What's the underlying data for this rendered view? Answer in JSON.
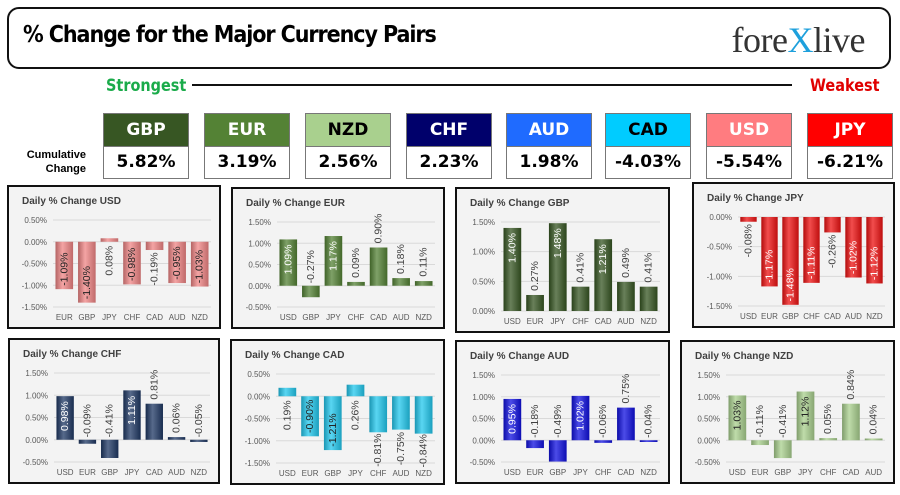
{
  "header": {
    "title": "% Change for the Major Currency Pairs",
    "logo": "forexlive",
    "strongest_label": "Strongest",
    "weakest_label": "Weakest",
    "cumulative_label": "Cumulative Change"
  },
  "summary": [
    {
      "currency": "GBP",
      "value": "5.82%",
      "color": "#375623",
      "text_color": "#ffffff"
    },
    {
      "currency": "EUR",
      "value": "3.19%",
      "color": "#548235",
      "text_color": "#ffffff"
    },
    {
      "currency": "NZD",
      "value": "2.56%",
      "color": "#a9d08e",
      "text_color": "#000000"
    },
    {
      "currency": "CHF",
      "value": "2.23%",
      "color": "#00006b",
      "text_color": "#ffffff"
    },
    {
      "currency": "AUD",
      "value": "1.98%",
      "color": "#1f6bff",
      "text_color": "#ffffff"
    },
    {
      "currency": "CAD",
      "value": "-4.03%",
      "color": "#00ccff",
      "text_color": "#000000"
    },
    {
      "currency": "USD",
      "value": "-5.54%",
      "color": "#ff7c80",
      "text_color": "#ffffff"
    },
    {
      "currency": "JPY",
      "value": "-6.21%",
      "color": "#ff0000",
      "text_color": "#ffffff"
    }
  ],
  "chart_data": [
    {
      "type": "bar",
      "title": "Daily % Change USD",
      "color": "#f08585",
      "categories": [
        "EUR",
        "GBP",
        "JPY",
        "CHF",
        "CAD",
        "AUD",
        "NZD"
      ],
      "values": [
        -1.09,
        -1.4,
        0.08,
        -0.98,
        -0.19,
        -0.95,
        -1.03
      ],
      "ylim": [
        -1.5,
        0.5
      ],
      "yticks": [
        "-1.50%",
        "-1.00%",
        "-0.50%",
        "0.00%",
        "0.50%"
      ],
      "grid": true
    },
    {
      "type": "bar",
      "title": "Daily % Change EUR",
      "color": "#548235",
      "categories": [
        "USD",
        "GBP",
        "JPY",
        "CHF",
        "CAD",
        "AUD",
        "NZD"
      ],
      "values": [
        1.09,
        -0.27,
        1.17,
        0.09,
        0.9,
        0.18,
        0.11
      ],
      "ylim": [
        -0.5,
        1.5
      ],
      "yticks": [
        "-0.50%",
        "0.00%",
        "0.50%",
        "1.00%",
        "1.50%"
      ],
      "grid": true
    },
    {
      "type": "bar",
      "title": "Daily % Change GBP",
      "color": "#375623",
      "categories": [
        "USD",
        "EUR",
        "JPY",
        "CHF",
        "CAD",
        "AUD",
        "NZD"
      ],
      "values": [
        1.4,
        0.27,
        1.48,
        0.41,
        1.21,
        0.49,
        0.41
      ],
      "ylim": [
        0,
        1.5
      ],
      "yticks": [
        "0.00%",
        "0.50%",
        "1.00%",
        "1.50%"
      ],
      "grid": true
    },
    {
      "type": "bar",
      "title": "Daily % Change JPY",
      "color": "#ee1111",
      "categories": [
        "USD",
        "EUR",
        "GBP",
        "CHF",
        "CAD",
        "AUD",
        "NZD"
      ],
      "values": [
        -0.08,
        -1.17,
        -1.48,
        -1.11,
        -0.26,
        -1.02,
        -1.12
      ],
      "ylim": [
        -1.5,
        0
      ],
      "yticks": [
        "-1.50%",
        "-1.00%",
        "-0.50%",
        "0.00%"
      ],
      "grid": true
    },
    {
      "type": "bar",
      "title": "Daily % Change CHF",
      "color": "#1f3864",
      "categories": [
        "USD",
        "EUR",
        "GBP",
        "JPY",
        "CAD",
        "AUD",
        "NZD"
      ],
      "values": [
        0.98,
        -0.09,
        -0.41,
        1.11,
        0.81,
        0.06,
        -0.05
      ],
      "ylim": [
        -0.5,
        1.5
      ],
      "yticks": [
        "-0.50%",
        "0.00%",
        "0.50%",
        "1.00%",
        "1.50%"
      ],
      "grid": true
    },
    {
      "type": "bar",
      "title": "Daily % Change CAD",
      "color": "#22c8ee",
      "categories": [
        "USD",
        "EUR",
        "GBP",
        "JPY",
        "CHF",
        "AUD",
        "NZD"
      ],
      "values": [
        0.19,
        -0.9,
        -1.21,
        0.26,
        -0.81,
        -0.75,
        -0.84
      ],
      "ylim": [
        -1.5,
        0.5
      ],
      "yticks": [
        "-1.50%",
        "-1.00%",
        "-0.50%",
        "0.00%",
        "0.50%"
      ],
      "grid": true
    },
    {
      "type": "bar",
      "title": "Daily % Change AUD",
      "color": "#1010e0",
      "categories": [
        "USD",
        "EUR",
        "GBP",
        "JPY",
        "CHF",
        "CAD",
        "NZD"
      ],
      "values": [
        0.95,
        -0.18,
        -0.49,
        1.02,
        -0.06,
        0.75,
        -0.04
      ],
      "ylim": [
        -0.5,
        1.5
      ],
      "yticks": [
        "-0.50%",
        "0.00%",
        "0.50%",
        "1.00%",
        "1.50%"
      ],
      "grid": true
    },
    {
      "type": "bar",
      "title": "Daily % Change NZD",
      "color": "#a9d08e",
      "categories": [
        "USD",
        "EUR",
        "GBP",
        "JPY",
        "CHF",
        "CAD",
        "AUD"
      ],
      "values": [
        1.03,
        -0.11,
        -0.41,
        1.12,
        0.05,
        0.84,
        0.04
      ],
      "ylim": [
        -0.5,
        1.5
      ],
      "yticks": [
        "-0.50%",
        "0.00%",
        "0.50%",
        "1.00%",
        "1.50%"
      ],
      "grid": true
    }
  ]
}
